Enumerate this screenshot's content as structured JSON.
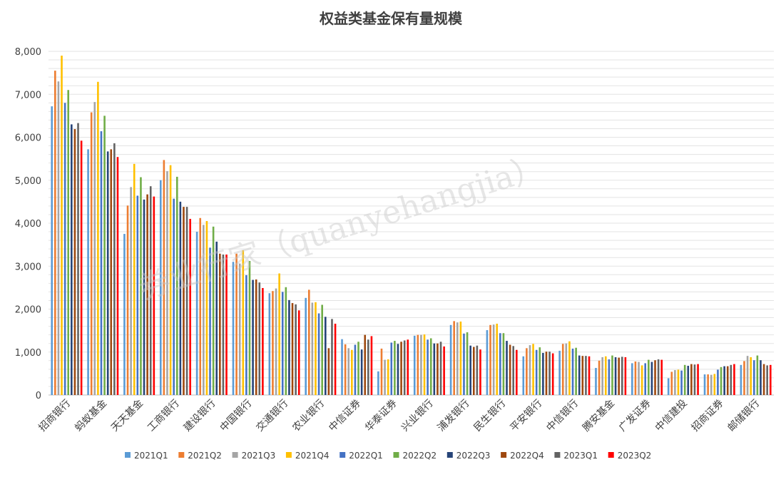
{
  "chart_data": {
    "type": "bar",
    "title": "权益类基金保有量规模",
    "xlabel": "",
    "ylabel": "",
    "ylim": [
      0,
      8000
    ],
    "yticks": [
      0,
      1000,
      2000,
      3000,
      4000,
      5000,
      6000,
      7000,
      8000
    ],
    "ytick_labels": [
      "0",
      "1,000",
      "2,000",
      "3,000",
      "4,000",
      "5,000",
      "6,000",
      "7,000",
      "8,000"
    ],
    "grid": true,
    "legend_position": "bottom",
    "categories": [
      "招商银行",
      "蚂蚁基金",
      "天天基金",
      "工商银行",
      "建设银行",
      "中国银行",
      "交通银行",
      "农业银行",
      "中信证券",
      "华泰证券",
      "兴业银行",
      "浦发银行",
      "民生银行",
      "平安银行",
      "中信银行",
      "腾安基金",
      "广发证券",
      "中信建投",
      "招商证券",
      "邮储银行"
    ],
    "series": [
      {
        "name": "2021Q1",
        "color": "#5b9bd5",
        "values": [
          6720,
          5720,
          3750,
          5000,
          3800,
          3100,
          2370,
          2260,
          1300,
          550,
          1380,
          1630,
          1510,
          900,
          1030,
          630,
          740,
          390,
          480,
          700
        ]
      },
      {
        "name": "2021Q2",
        "color": "#ed7d31",
        "values": [
          7550,
          6580,
          4410,
          5470,
          4120,
          3290,
          2420,
          2450,
          1180,
          1080,
          1400,
          1720,
          1630,
          1090,
          1190,
          800,
          780,
          540,
          480,
          790
        ]
      },
      {
        "name": "2021Q3",
        "color": "#a5a5a5",
        "values": [
          7300,
          6820,
          4840,
          5210,
          3960,
          3060,
          2480,
          2150,
          1090,
          820,
          1400,
          1690,
          1640,
          1160,
          1200,
          880,
          770,
          580,
          470,
          910
        ]
      },
      {
        "name": "2021Q4",
        "color": "#ffc000",
        "values": [
          7900,
          7290,
          5380,
          5350,
          4050,
          3370,
          2830,
          2160,
          1050,
          830,
          1410,
          1710,
          1660,
          1190,
          1250,
          900,
          690,
          590,
          490,
          880
        ]
      },
      {
        "name": "2022Q1",
        "color": "#4472c4",
        "values": [
          6800,
          6140,
          4640,
          4570,
          3430,
          2790,
          2400,
          1900,
          1170,
          1220,
          1290,
          1430,
          1440,
          1050,
          1080,
          830,
          740,
          570,
          590,
          810
        ]
      },
      {
        "name": "2022Q2",
        "color": "#70ad47",
        "values": [
          7100,
          6500,
          5070,
          5080,
          3920,
          3120,
          2510,
          2100,
          1240,
          1260,
          1320,
          1460,
          1440,
          1110,
          1100,
          920,
          820,
          700,
          650,
          920
        ]
      },
      {
        "name": "2022Q3",
        "color": "#264478",
        "values": [
          6300,
          5670,
          4550,
          4500,
          3570,
          2680,
          2210,
          1820,
          1060,
          1190,
          1200,
          1150,
          1260,
          980,
          920,
          880,
          770,
          680,
          670,
          810
        ]
      },
      {
        "name": "2022Q4",
        "color": "#9e480e",
        "values": [
          6190,
          5720,
          4670,
          4380,
          3290,
          2690,
          2140,
          1090,
          1400,
          1240,
          1200,
          1120,
          1170,
          1010,
          910,
          870,
          810,
          720,
          670,
          720
        ]
      },
      {
        "name": "2023Q1",
        "color": "#636363",
        "values": [
          6330,
          5860,
          4860,
          4380,
          3270,
          2620,
          2110,
          1770,
          1290,
          1270,
          1240,
          1150,
          1140,
          1010,
          910,
          890,
          830,
          710,
          700,
          690
        ]
      },
      {
        "name": "2023Q2",
        "color": "#ff0000",
        "values": [
          5920,
          5540,
          4620,
          4100,
          3270,
          2490,
          1970,
          1660,
          1370,
          1290,
          1130,
          1060,
          1050,
          970,
          900,
          880,
          820,
          720,
          720,
          700
        ]
      }
    ]
  },
  "watermark": "券业行家（quanyehangjia）"
}
